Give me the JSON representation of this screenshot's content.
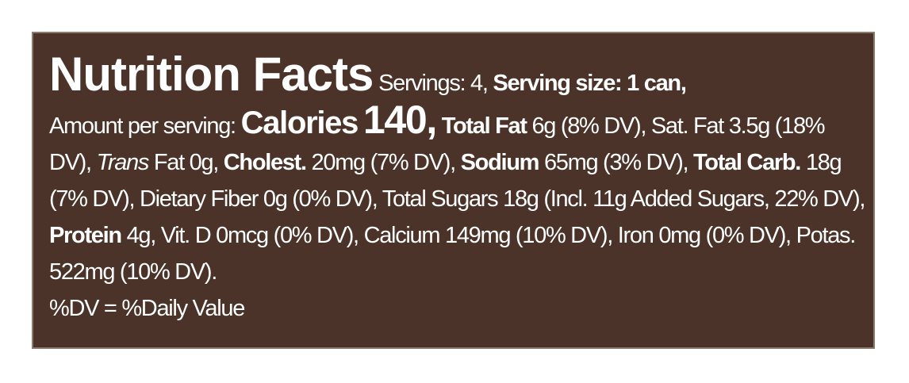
{
  "header": {
    "title": "Nutrition Facts",
    "servings": "Servings: 4,",
    "serving_size": "Serving size: 1 can,"
  },
  "calories": {
    "intro": "Amount per serving:",
    "label": "Calories",
    "value": "140,"
  },
  "nutrients": [
    {
      "name": "Total Fat",
      "amount": "6g (8% DV),"
    },
    {
      "name": "Sat. Fat",
      "amount": "3.5g (18% DV),"
    },
    {
      "name": "Trans",
      "amount": "Fat 0g,"
    },
    {
      "name": "Cholest.",
      "amount": "20mg (7% DV),"
    },
    {
      "name": "Sodium",
      "amount": "65mg (3% DV),"
    },
    {
      "name": "Total Carb.",
      "amount": "18g (7% DV),"
    },
    {
      "name": "Dietary Fiber",
      "amount": "0g (0% DV),"
    },
    {
      "name": "Total Sugars",
      "amount": "18g (Incl. 11g Added Sugars, 22% DV),"
    },
    {
      "name": "Protein",
      "amount": "4g,"
    },
    {
      "name": "Vit. D",
      "amount": "0mcg (0% DV),"
    },
    {
      "name": "Calcium",
      "amount": "149mg (10% DV),"
    },
    {
      "name": "Iron",
      "amount": "0mg (0% DV),"
    },
    {
      "name": "Potas.",
      "amount": "522mg (10% DV)."
    }
  ],
  "footnote": "%DV = %Daily Value"
}
